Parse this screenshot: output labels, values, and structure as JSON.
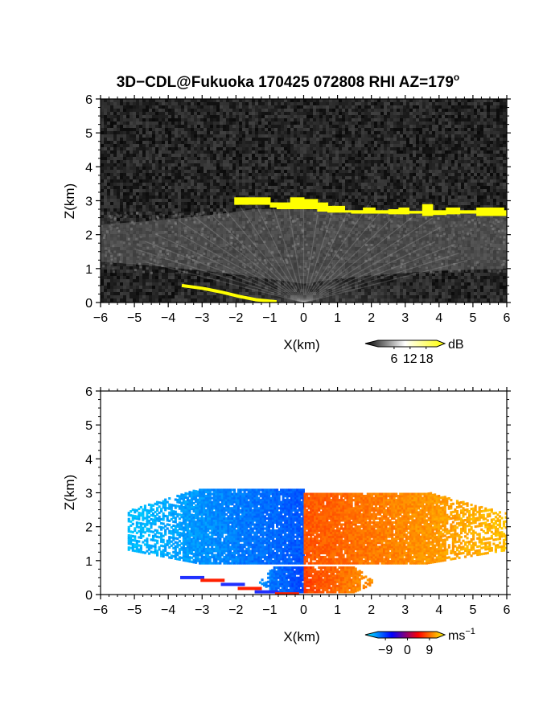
{
  "figure": {
    "title": "3D−CDL@Fukuoka 170425 072808 RHI AZ=179",
    "title_superscript": "o"
  },
  "colors": {
    "background_top": "#101010",
    "cloud_base": "#ffff00",
    "velocity_negative_far": "#00e5ff",
    "velocity_negative_near": "#0020ff",
    "velocity_zero": "#ff2000",
    "velocity_positive_far": "#ffdd00"
  },
  "chart_data": [
    {
      "type": "heatmap",
      "panel": "backscatter",
      "xlabel": "X(km)",
      "ylabel": "Z(km)",
      "xlim": [
        -6,
        6
      ],
      "ylim": [
        0,
        6
      ],
      "x_ticks": [
        "−6",
        "−5",
        "−4",
        "−3",
        "−2",
        "−1",
        "0",
        "1",
        "2",
        "3",
        "4",
        "5",
        "6"
      ],
      "y_ticks": [
        "0",
        "1",
        "2",
        "3",
        "4",
        "5",
        "6"
      ],
      "colorbar": {
        "unit": "dB",
        "ticks": [
          "6",
          "12",
          "18"
        ],
        "range": [
          0,
          22
        ],
        "colors": [
          "#000000",
          "#ffffff",
          "#ffff00"
        ]
      },
      "cloud_layer": [
        {
          "x": -2.05,
          "z_bottom": 2.88,
          "z_top": 3.1
        },
        {
          "x": -1.0,
          "z_bottom": 2.8,
          "z_top": 2.95
        },
        {
          "x": -0.8,
          "z_bottom": 2.75,
          "z_top": 2.95
        },
        {
          "x": -0.4,
          "z_bottom": 2.75,
          "z_top": 3.1
        },
        {
          "x": 0.0,
          "z_bottom": 2.75,
          "z_top": 3.05
        },
        {
          "x": 0.4,
          "z_bottom": 2.68,
          "z_top": 2.95
        },
        {
          "x": 0.7,
          "z_bottom": 2.65,
          "z_top": 2.85
        },
        {
          "x": 1.2,
          "z_bottom": 2.65,
          "z_top": 2.72
        },
        {
          "x": 1.4,
          "z_bottom": 2.62,
          "z_top": 2.72
        },
        {
          "x": 1.75,
          "z_bottom": 2.62,
          "z_top": 2.8
        },
        {
          "x": 2.1,
          "z_bottom": 2.62,
          "z_top": 2.72
        },
        {
          "x": 2.5,
          "z_bottom": 2.6,
          "z_top": 2.75
        },
        {
          "x": 2.8,
          "z_bottom": 2.6,
          "z_top": 2.8
        },
        {
          "x": 3.1,
          "z_bottom": 2.62,
          "z_top": 2.7
        },
        {
          "x": 3.5,
          "z_bottom": 2.55,
          "z_top": 2.9
        },
        {
          "x": 3.8,
          "z_bottom": 2.58,
          "z_top": 2.72
        },
        {
          "x": 4.2,
          "z_bottom": 2.6,
          "z_top": 2.8
        },
        {
          "x": 4.6,
          "z_bottom": 2.62,
          "z_top": 2.72
        },
        {
          "x": 5.1,
          "z_bottom": 2.55,
          "z_top": 2.8
        },
        {
          "x": 5.5,
          "z_bottom": 2.55,
          "z_top": 2.8
        },
        {
          "x": 5.9,
          "z_bottom": 2.55,
          "z_top": 2.72
        }
      ],
      "surface_echo": [
        {
          "x": -3.6,
          "z": 0.5
        },
        {
          "x": -3.0,
          "z": 0.42
        },
        {
          "x": -2.4,
          "z": 0.3
        },
        {
          "x": -1.9,
          "z": 0.18
        },
        {
          "x": -1.4,
          "z": 0.08
        },
        {
          "x": -0.8,
          "z": 0.02
        }
      ]
    },
    {
      "type": "heatmap",
      "panel": "doppler_velocity",
      "xlabel": "X(km)",
      "ylabel": "Z(km)",
      "xlim": [
        -6,
        6
      ],
      "ylim": [
        0,
        6
      ],
      "x_ticks": [
        "−6",
        "−5",
        "−4",
        "−3",
        "−2",
        "−1",
        "0",
        "1",
        "2",
        "3",
        "4",
        "5",
        "6"
      ],
      "y_ticks": [
        "0",
        "1",
        "2",
        "3",
        "4",
        "5",
        "6"
      ],
      "colorbar": {
        "unit": "ms",
        "unit_superscript": "−1",
        "ticks": [
          "−9",
          "0",
          "9"
        ],
        "range": [
          -12,
          12
        ],
        "colors": [
          "#00ffff",
          "#0000ff",
          "#ff0000",
          "#ffff00"
        ]
      },
      "regions": [
        {
          "sign": "negative",
          "x_from": -5.2,
          "x_to": 0.0,
          "z_from": 0.9,
          "z_to": 3.1,
          "velocity_far": -9,
          "velocity_near": -4
        },
        {
          "sign": "positive",
          "x_from": 0.0,
          "x_to": 6.0,
          "z_from": 0.9,
          "z_to": 3.0,
          "velocity_far": 9,
          "velocity_near": 4
        },
        {
          "sign": "negative",
          "x_from": -1.5,
          "x_to": 0.0,
          "z_from": 0.05,
          "z_to": 0.8,
          "velocity_far": -7,
          "velocity_near": -3
        },
        {
          "sign": "positive",
          "x_from": 0.0,
          "x_to": 2.4,
          "z_from": 0.05,
          "z_to": 0.8,
          "velocity_far": 8,
          "velocity_near": 3
        }
      ]
    }
  ]
}
